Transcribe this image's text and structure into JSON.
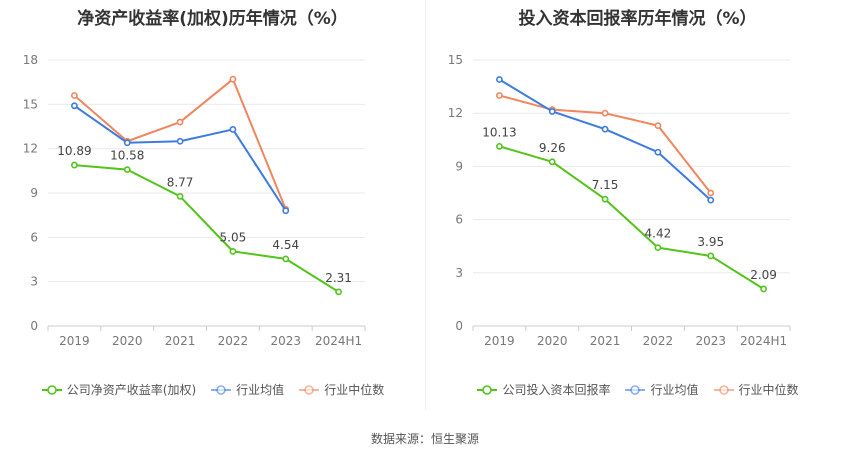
{
  "source": "数据来源：恒生聚源",
  "chart_data": [
    {
      "type": "line",
      "title": "净资产收益率(加权)历年情况（%）",
      "categories": [
        "2019",
        "2020",
        "2021",
        "2022",
        "2023",
        "2024H1"
      ],
      "ylim": [
        0,
        18
      ],
      "yticks": [
        0,
        3,
        6,
        9,
        12,
        15,
        18
      ],
      "grid": true,
      "legend_position": "bottom",
      "series": [
        {
          "name": "公司净资产收益率(加权)",
          "color": "#52c41a",
          "labels": true,
          "values": [
            10.89,
            10.58,
            8.77,
            5.05,
            4.54,
            2.31
          ]
        },
        {
          "name": "行业均值",
          "color": "#3d7be0",
          "labels": false,
          "values": [
            14.9,
            12.4,
            12.5,
            13.3,
            7.8,
            null
          ]
        },
        {
          "name": "行业中位数",
          "color": "#f0865e",
          "labels": false,
          "values": [
            15.6,
            12.5,
            13.8,
            16.7,
            7.9,
            null
          ]
        }
      ]
    },
    {
      "type": "line",
      "title": "投入资本回报率历年情况（%）",
      "categories": [
        "2019",
        "2020",
        "2021",
        "2022",
        "2023",
        "2024H1"
      ],
      "ylim": [
        0,
        15
      ],
      "yticks": [
        0,
        3,
        6,
        9,
        12,
        15
      ],
      "grid": true,
      "legend_position": "bottom",
      "series": [
        {
          "name": "公司投入资本回报率",
          "color": "#52c41a",
          "labels": true,
          "values": [
            10.13,
            9.26,
            7.15,
            4.42,
            3.95,
            2.09
          ]
        },
        {
          "name": "行业均值",
          "color": "#3d7be0",
          "labels": false,
          "values": [
            13.9,
            12.1,
            11.1,
            9.8,
            7.1,
            null
          ]
        },
        {
          "name": "行业中位数",
          "color": "#f0865e",
          "labels": false,
          "values": [
            13.0,
            12.2,
            12.0,
            11.3,
            7.5,
            null
          ]
        }
      ]
    }
  ]
}
